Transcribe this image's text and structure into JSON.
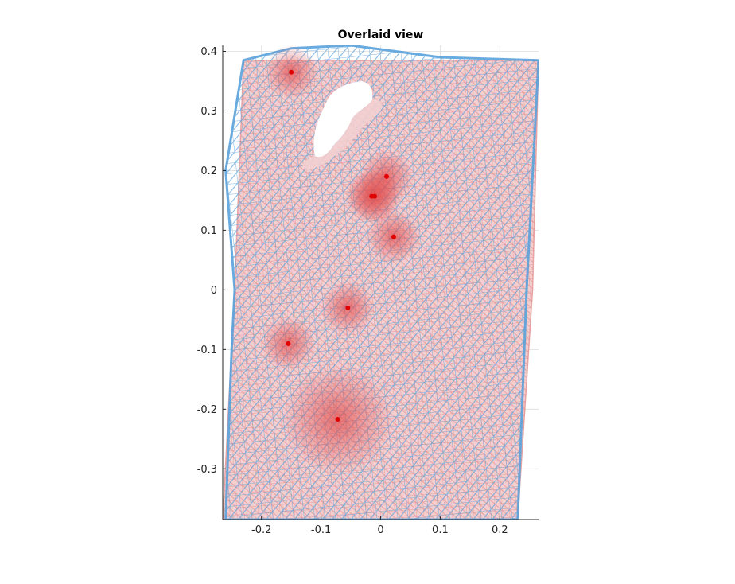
{
  "chart_data": {
    "type": "scatter",
    "title": "Overlaid view",
    "xlabel": "",
    "ylabel": "",
    "xlim": [
      -0.265,
      0.265
    ],
    "ylim": [
      -0.385,
      0.41
    ],
    "x_ticks": [
      -0.2,
      -0.1,
      0,
      0.1,
      0.2
    ],
    "x_tick_labels": [
      "-0.2",
      "-0.1",
      "0",
      "0.1",
      "0.2"
    ],
    "y_ticks": [
      0.4,
      0.3,
      0.2,
      0.1,
      0,
      -0.1,
      -0.2,
      -0.3
    ],
    "y_tick_labels": [
      "0.4",
      "0.3",
      "0.2",
      "0.1",
      "0",
      "-0.1",
      "-0.2",
      "-0.3"
    ],
    "grid": true,
    "series": [
      {
        "color": "#e8a4a4",
        "kind": "triangular-mesh",
        "outline": [
          [
            -0.23,
            0.385
          ],
          [
            0.265,
            0.385
          ],
          [
            0.255,
            0.0
          ],
          [
            0.23,
            -0.385
          ],
          [
            -0.265,
            -0.385
          ],
          [
            -0.245,
            0.0
          ]
        ]
      },
      {
        "color": "#5aa2dc",
        "kind": "triangular-mesh",
        "outline": [
          [
            -0.23,
            0.385
          ],
          [
            -0.15,
            0.405
          ],
          [
            -0.05,
            0.41
          ],
          [
            0.1,
            0.39
          ],
          [
            0.265,
            0.385
          ],
          [
            0.245,
            0.0
          ],
          [
            0.23,
            -0.385
          ],
          [
            -0.26,
            -0.385
          ],
          [
            -0.25,
            -0.1
          ],
          [
            -0.245,
            0.0
          ],
          [
            -0.26,
            0.2
          ]
        ]
      },
      {
        "color": "#e00000",
        "kind": "points",
        "x": [
          -0.15,
          0.01,
          -0.015,
          -0.01,
          0.022,
          -0.055,
          -0.155,
          -0.072
        ],
        "y": [
          0.365,
          0.19,
          0.157,
          0.157,
          0.089,
          -0.03,
          -0.09,
          -0.217
        ]
      }
    ]
  },
  "colors": {
    "mesh_red": "#e8a4a4",
    "mesh_blue": "#5aa2dc",
    "points": "#e00000",
    "axis": "#262626",
    "grid": "#dcdcdc"
  }
}
